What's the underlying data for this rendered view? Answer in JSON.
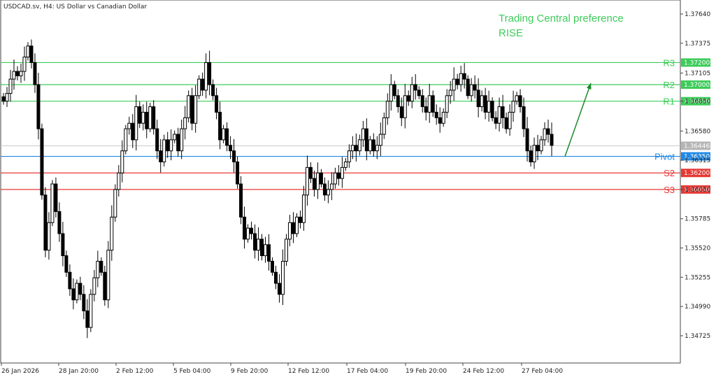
{
  "chart_data": {
    "type": "candlestick",
    "title": "USDCAD.sv, H4:  US Dollar vs Canadian Dollar",
    "annotation": [
      "Trading Central preference",
      "RISE"
    ],
    "ylim": [
      1.3455,
      1.3775
    ],
    "y_ticks": [
      "1.37640",
      "1.37375",
      "1.37105",
      "1.36850",
      "1.36580",
      "1.36315",
      "1.36050",
      "1.35785",
      "1.35520",
      "1.35255",
      "1.34990",
      "1.34725"
    ],
    "x_ticks": [
      "26 Jan 2026",
      "28 Jan 20:00",
      "2 Feb 12:00",
      "5 Feb 04:00",
      "9 Feb 20:00",
      "12 Feb 12:00",
      "17 Feb 04:00",
      "19 Feb 20:00",
      "24 Feb 12:00",
      "27 Feb 04:00"
    ],
    "current_price": "1.36446",
    "current_price_value": 1.36446,
    "levels": [
      {
        "name": "R3",
        "value": 1.372,
        "label": "1.37200",
        "color": "#3dcc5a"
      },
      {
        "name": "R2",
        "value": 1.37,
        "label": "1.37000",
        "color": "#3dcc5a"
      },
      {
        "name": "R1",
        "value": 1.3685,
        "label": "1.36850",
        "color": "#3dcc5a"
      },
      {
        "name": "Pivot",
        "value": 1.3635,
        "label": "1.36350",
        "color": "#1e88e5"
      },
      {
        "name": "S2",
        "value": 1.362,
        "label": "1.36200",
        "color": "#e53935"
      },
      {
        "name": "S3",
        "value": 1.3605,
        "label": "1.36050",
        "color": "#e53935"
      }
    ],
    "arrow": {
      "from_value": 1.3635,
      "to_value": 1.37,
      "color": "#1a8a2a"
    },
    "closes": [
      1.3685,
      1.3692,
      1.3705,
      1.3712,
      1.3708,
      1.3712,
      1.3725,
      1.3735,
      1.372,
      1.37,
      1.366,
      1.36,
      1.355,
      1.3575,
      1.361,
      1.3585,
      1.3565,
      1.3545,
      1.353,
      1.3515,
      1.3505,
      1.352,
      1.351,
      1.3495,
      1.348,
      1.351,
      1.3525,
      1.354,
      1.353,
      1.3505,
      1.355,
      1.358,
      1.3605,
      1.362,
      1.364,
      1.366,
      1.3665,
      1.365,
      1.368,
      1.3665,
      1.3675,
      1.366,
      1.368,
      1.366,
      1.364,
      1.363,
      1.365,
      1.364,
      1.365,
      1.3655,
      1.364,
      1.366,
      1.367,
      1.369,
      1.3665,
      1.369,
      1.3705,
      1.3695,
      1.372,
      1.37,
      1.369,
      1.3675,
      1.365,
      1.366,
      1.3645,
      1.364,
      1.363,
      1.361,
      1.358,
      1.356,
      1.357,
      1.3565,
      1.355,
      1.356,
      1.3545,
      1.3555,
      1.354,
      1.353,
      1.352,
      1.351,
      1.354,
      1.356,
      1.3575,
      1.3565,
      1.358,
      1.3575,
      1.36,
      1.3625,
      1.3615,
      1.3605,
      1.362,
      1.361,
      1.36,
      1.3605,
      1.361,
      1.362,
      1.3615,
      1.3625,
      1.363,
      1.364,
      1.3645,
      1.364,
      1.365,
      1.366,
      1.364,
      1.365,
      1.364,
      1.3645,
      1.3655,
      1.367,
      1.3685,
      1.37,
      1.369,
      1.368,
      1.367,
      1.369,
      1.3685,
      1.37,
      1.3695,
      1.369,
      1.368,
      1.3675,
      1.369,
      1.3675,
      1.367,
      1.3665,
      1.3675,
      1.369,
      1.3695,
      1.3705,
      1.37,
      1.371,
      1.3705,
      1.369,
      1.37,
      1.3695,
      1.368,
      1.369,
      1.3675,
      1.3685,
      1.367,
      1.3665,
      1.368,
      1.367,
      1.366,
      1.3675,
      1.3685,
      1.369,
      1.368,
      1.366,
      1.364,
      1.363,
      1.3645,
      1.364,
      1.365,
      1.366,
      1.3655,
      1.3645
    ]
  }
}
